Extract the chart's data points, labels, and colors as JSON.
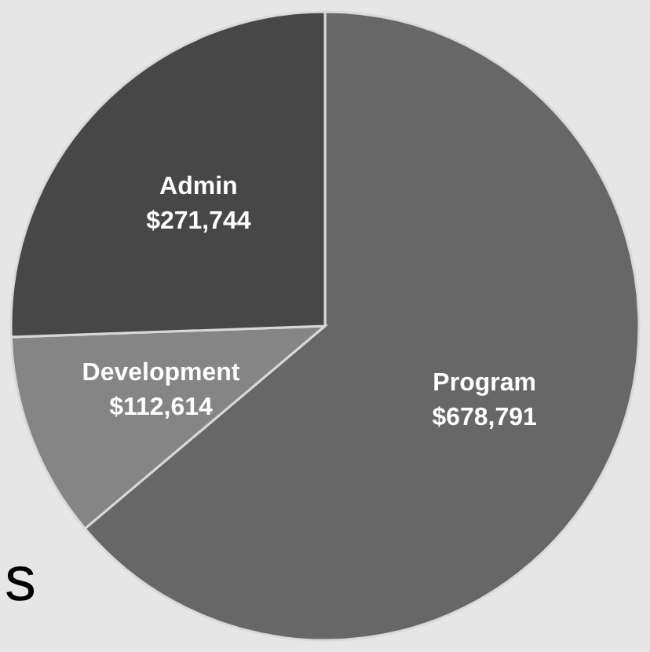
{
  "chart_data": {
    "type": "pie",
    "categories": [
      "Program",
      "Development",
      "Admin"
    ],
    "values": [
      678791,
      112614,
      271744
    ],
    "colors": [
      "#676767",
      "#858585",
      "#474747"
    ],
    "value_labels": [
      "$678,791",
      "$112,614",
      "$271,744"
    ],
    "annotations": [
      "s"
    ]
  }
}
